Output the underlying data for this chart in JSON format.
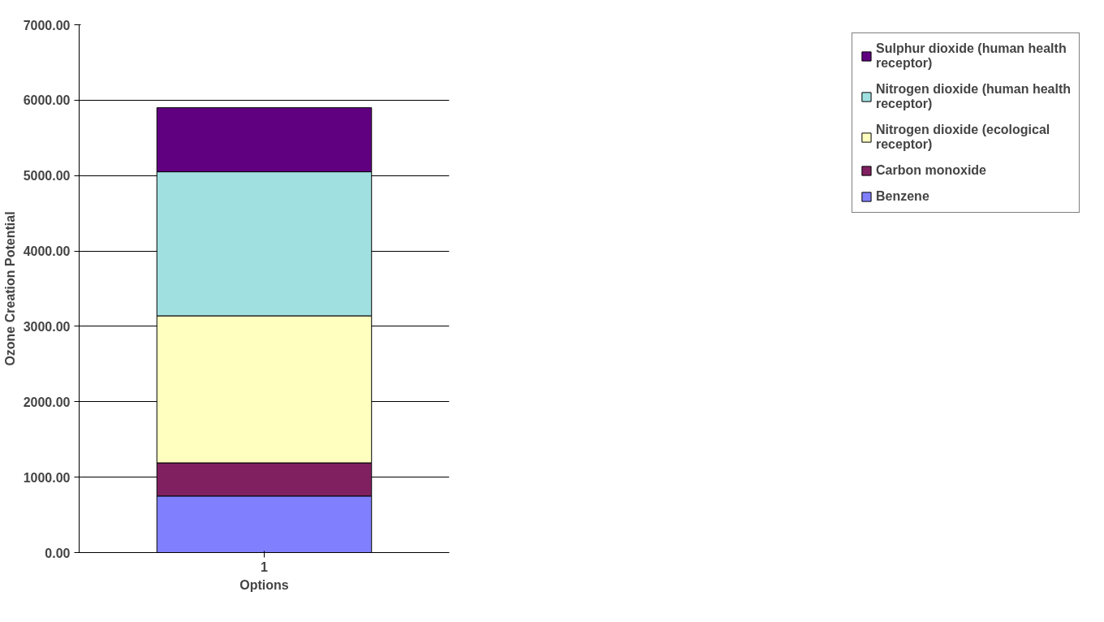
{
  "chart_data": {
    "type": "bar",
    "stacked": true,
    "xlabel": "Options",
    "ylabel": "Ozone Creation Potential",
    "categories": [
      "1"
    ],
    "series": [
      {
        "name": "Benzene",
        "color": "#8080ff",
        "values": [
          750
        ]
      },
      {
        "name": "Carbon monoxide",
        "color": "#802060",
        "values": [
          440
        ]
      },
      {
        "name": "Nitrogen dioxide (ecological receptor)",
        "color": "#ffffc0",
        "values": [
          1950
        ]
      },
      {
        "name": "Nitrogen dioxide (human health receptor)",
        "color": "#a0e0e0",
        "values": [
          1910
        ]
      },
      {
        "name": "Sulphur dioxide (human health receptor)",
        "color": "#600080",
        "values": [
          850
        ]
      }
    ],
    "ylim": [
      0,
      7000
    ],
    "yticks": [
      {
        "value": 0,
        "label": "0.00"
      },
      {
        "value": 1000,
        "label": "1000.00"
      },
      {
        "value": 2000,
        "label": "2000.00"
      },
      {
        "value": 3000,
        "label": "3000.00"
      },
      {
        "value": 4000,
        "label": "4000.00"
      },
      {
        "value": 5000,
        "label": "5000.00"
      },
      {
        "value": 6000,
        "label": "6000.00"
      },
      {
        "value": 7000,
        "label": "7000.00"
      }
    ],
    "grid": "y",
    "legend": "right"
  }
}
